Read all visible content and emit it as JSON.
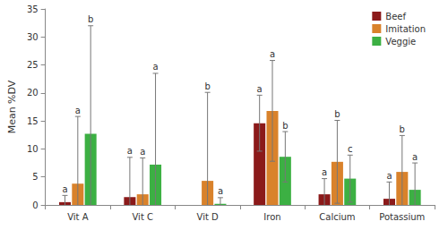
{
  "chart_data": {
    "type": "bar",
    "y_label": "Mean %DV",
    "categories": [
      "Vit A",
      "Vit C",
      "Vit D",
      "Iron",
      "Calcium",
      "Potassium"
    ],
    "series": [
      {
        "name": "Beef",
        "color": "#8b1a1a",
        "values": [
          0.5,
          1.4,
          0,
          14.6,
          1.9,
          1.1
        ],
        "errors": [
          1.2,
          7.1,
          0,
          5.0,
          2.8,
          3.0
        ],
        "letters": [
          "a",
          "a",
          null,
          "a",
          "a",
          "a"
        ]
      },
      {
        "name": "Imitation",
        "color": "#d9822b",
        "values": [
          3.8,
          1.9,
          4.3,
          16.8,
          7.7,
          5.9
        ],
        "errors": [
          12.0,
          6.5,
          15.8,
          9.0,
          7.4,
          6.5
        ],
        "letters": [
          "a",
          "a",
          "b",
          "a",
          "b",
          "b"
        ]
      },
      {
        "name": "Veggie",
        "color": "#3cb043",
        "values": [
          12.7,
          7.2,
          0.2,
          8.6,
          4.7,
          2.7
        ],
        "errors": [
          19.3,
          16.3,
          1.1,
          4.5,
          4.2,
          4.8
        ],
        "letters": [
          "b",
          "a",
          "a",
          "b",
          "c",
          "a"
        ]
      }
    ],
    "ylim": [
      0,
      35
    ],
    "yticks": [
      0,
      5,
      10,
      15,
      20,
      25,
      30,
      35
    ],
    "grid": false,
    "legend": "upper right"
  }
}
